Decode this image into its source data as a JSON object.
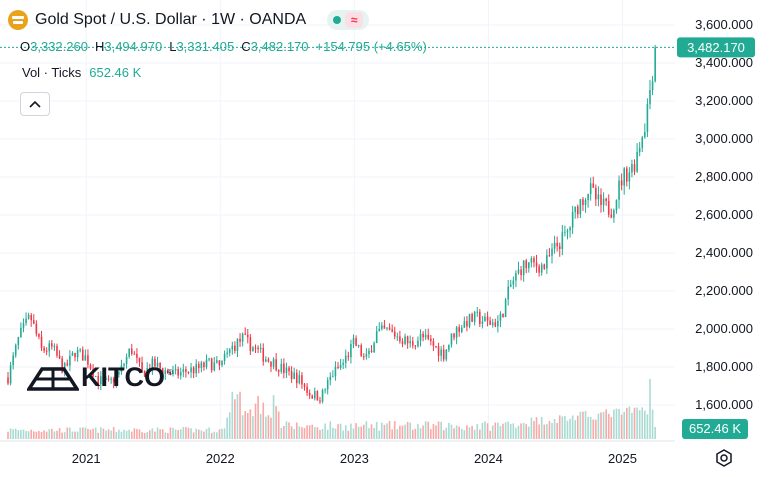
{
  "header": {
    "title": "Gold Spot / U.S. Dollar · 1W · OANDA",
    "ohlc": [
      {
        "k": "O",
        "v": "3,332.260"
      },
      {
        "k": "H",
        "v": "3,494.970"
      },
      {
        "k": "L",
        "v": "3,331.405"
      },
      {
        "k": "C",
        "v": "3,482.170"
      },
      {
        "k": "",
        "v": "+154.795 (+4.65%)"
      }
    ],
    "vol_label": "Vol · Ticks",
    "vol_value": "652.46 K",
    "collapse_icon": "chevron-up-icon",
    "approx_icon": "≈"
  },
  "logo": {
    "text": "KITCO"
  },
  "colors": {
    "up": "#22ab94",
    "down": "#f23645",
    "vol_up": "#a9dbd2",
    "vol_down": "#f7a9a7",
    "grid": "#f0f3fa"
  },
  "chart_data": {
    "type": "candlestick",
    "symbol": "Gold Spot / U.S. Dollar",
    "timeframe": "1W",
    "source": "OANDA",
    "x_ticks": [
      "2021",
      "2022",
      "2023",
      "2024",
      "2025"
    ],
    "y_ticks": [
      "1,600.000",
      "1,800.000",
      "2,000.000",
      "2,200.000",
      "2,400.000",
      "2,600.000",
      "2,800.000",
      "3,000.000",
      "3,200.000",
      "3,400.000",
      "3,600.000"
    ],
    "ylim": [
      1520,
      3650
    ],
    "last_price": "3,482.170",
    "last_volume": "652.46 K",
    "grid": true,
    "approx_weekly_close": [
      {
        "x": "2020-06",
        "y": 1745
      },
      {
        "x": "2020-07",
        "y": 1960
      },
      {
        "x": "2020-08",
        "y": 2065
      },
      {
        "x": "2020-09",
        "y": 1890
      },
      {
        "x": "2020-10",
        "y": 1900
      },
      {
        "x": "2020-11",
        "y": 1780
      },
      {
        "x": "2020-12",
        "y": 1880
      },
      {
        "x": "2021-01",
        "y": 1850
      },
      {
        "x": "2021-02",
        "y": 1735
      },
      {
        "x": "2021-03",
        "y": 1710
      },
      {
        "x": "2021-04",
        "y": 1770
      },
      {
        "x": "2021-05",
        "y": 1900
      },
      {
        "x": "2021-06",
        "y": 1765
      },
      {
        "x": "2021-07",
        "y": 1815
      },
      {
        "x": "2021-08",
        "y": 1780
      },
      {
        "x": "2021-09",
        "y": 1760
      },
      {
        "x": "2021-10",
        "y": 1780
      },
      {
        "x": "2021-11",
        "y": 1790
      },
      {
        "x": "2021-12",
        "y": 1820
      },
      {
        "x": "2022-01",
        "y": 1800
      },
      {
        "x": "2022-02",
        "y": 1900
      },
      {
        "x": "2022-03",
        "y": 1950
      },
      {
        "x": "2022-04",
        "y": 1900
      },
      {
        "x": "2022-05",
        "y": 1850
      },
      {
        "x": "2022-06",
        "y": 1815
      },
      {
        "x": "2022-07",
        "y": 1770
      },
      {
        "x": "2022-08",
        "y": 1740
      },
      {
        "x": "2022-09",
        "y": 1660
      },
      {
        "x": "2022-10",
        "y": 1640
      },
      {
        "x": "2022-11",
        "y": 1760
      },
      {
        "x": "2022-12",
        "y": 1820
      },
      {
        "x": "2023-01",
        "y": 1930
      },
      {
        "x": "2023-02",
        "y": 1830
      },
      {
        "x": "2023-03",
        "y": 1980
      },
      {
        "x": "2023-04",
        "y": 1990
      },
      {
        "x": "2023-05",
        "y": 1960
      },
      {
        "x": "2023-06",
        "y": 1920
      },
      {
        "x": "2023-07",
        "y": 1960
      },
      {
        "x": "2023-08",
        "y": 1915
      },
      {
        "x": "2023-09",
        "y": 1870
      },
      {
        "x": "2023-10",
        "y": 1990
      },
      {
        "x": "2023-11",
        "y": 2040
      },
      {
        "x": "2023-12",
        "y": 2060
      },
      {
        "x": "2024-01",
        "y": 2030
      },
      {
        "x": "2024-02",
        "y": 2040
      },
      {
        "x": "2024-03",
        "y": 2230
      },
      {
        "x": "2024-04",
        "y": 2330
      },
      {
        "x": "2024-05",
        "y": 2340
      },
      {
        "x": "2024-06",
        "y": 2330
      },
      {
        "x": "2024-07",
        "y": 2430
      },
      {
        "x": "2024-08",
        "y": 2500
      },
      {
        "x": "2024-09",
        "y": 2650
      },
      {
        "x": "2024-10",
        "y": 2740
      },
      {
        "x": "2024-11",
        "y": 2650
      },
      {
        "x": "2024-12",
        "y": 2630
      },
      {
        "x": "2025-01",
        "y": 2800
      },
      {
        "x": "2025-02",
        "y": 2860
      },
      {
        "x": "2025-03",
        "y": 3080
      },
      {
        "x": "2025-04",
        "y": 3482
      }
    ]
  }
}
